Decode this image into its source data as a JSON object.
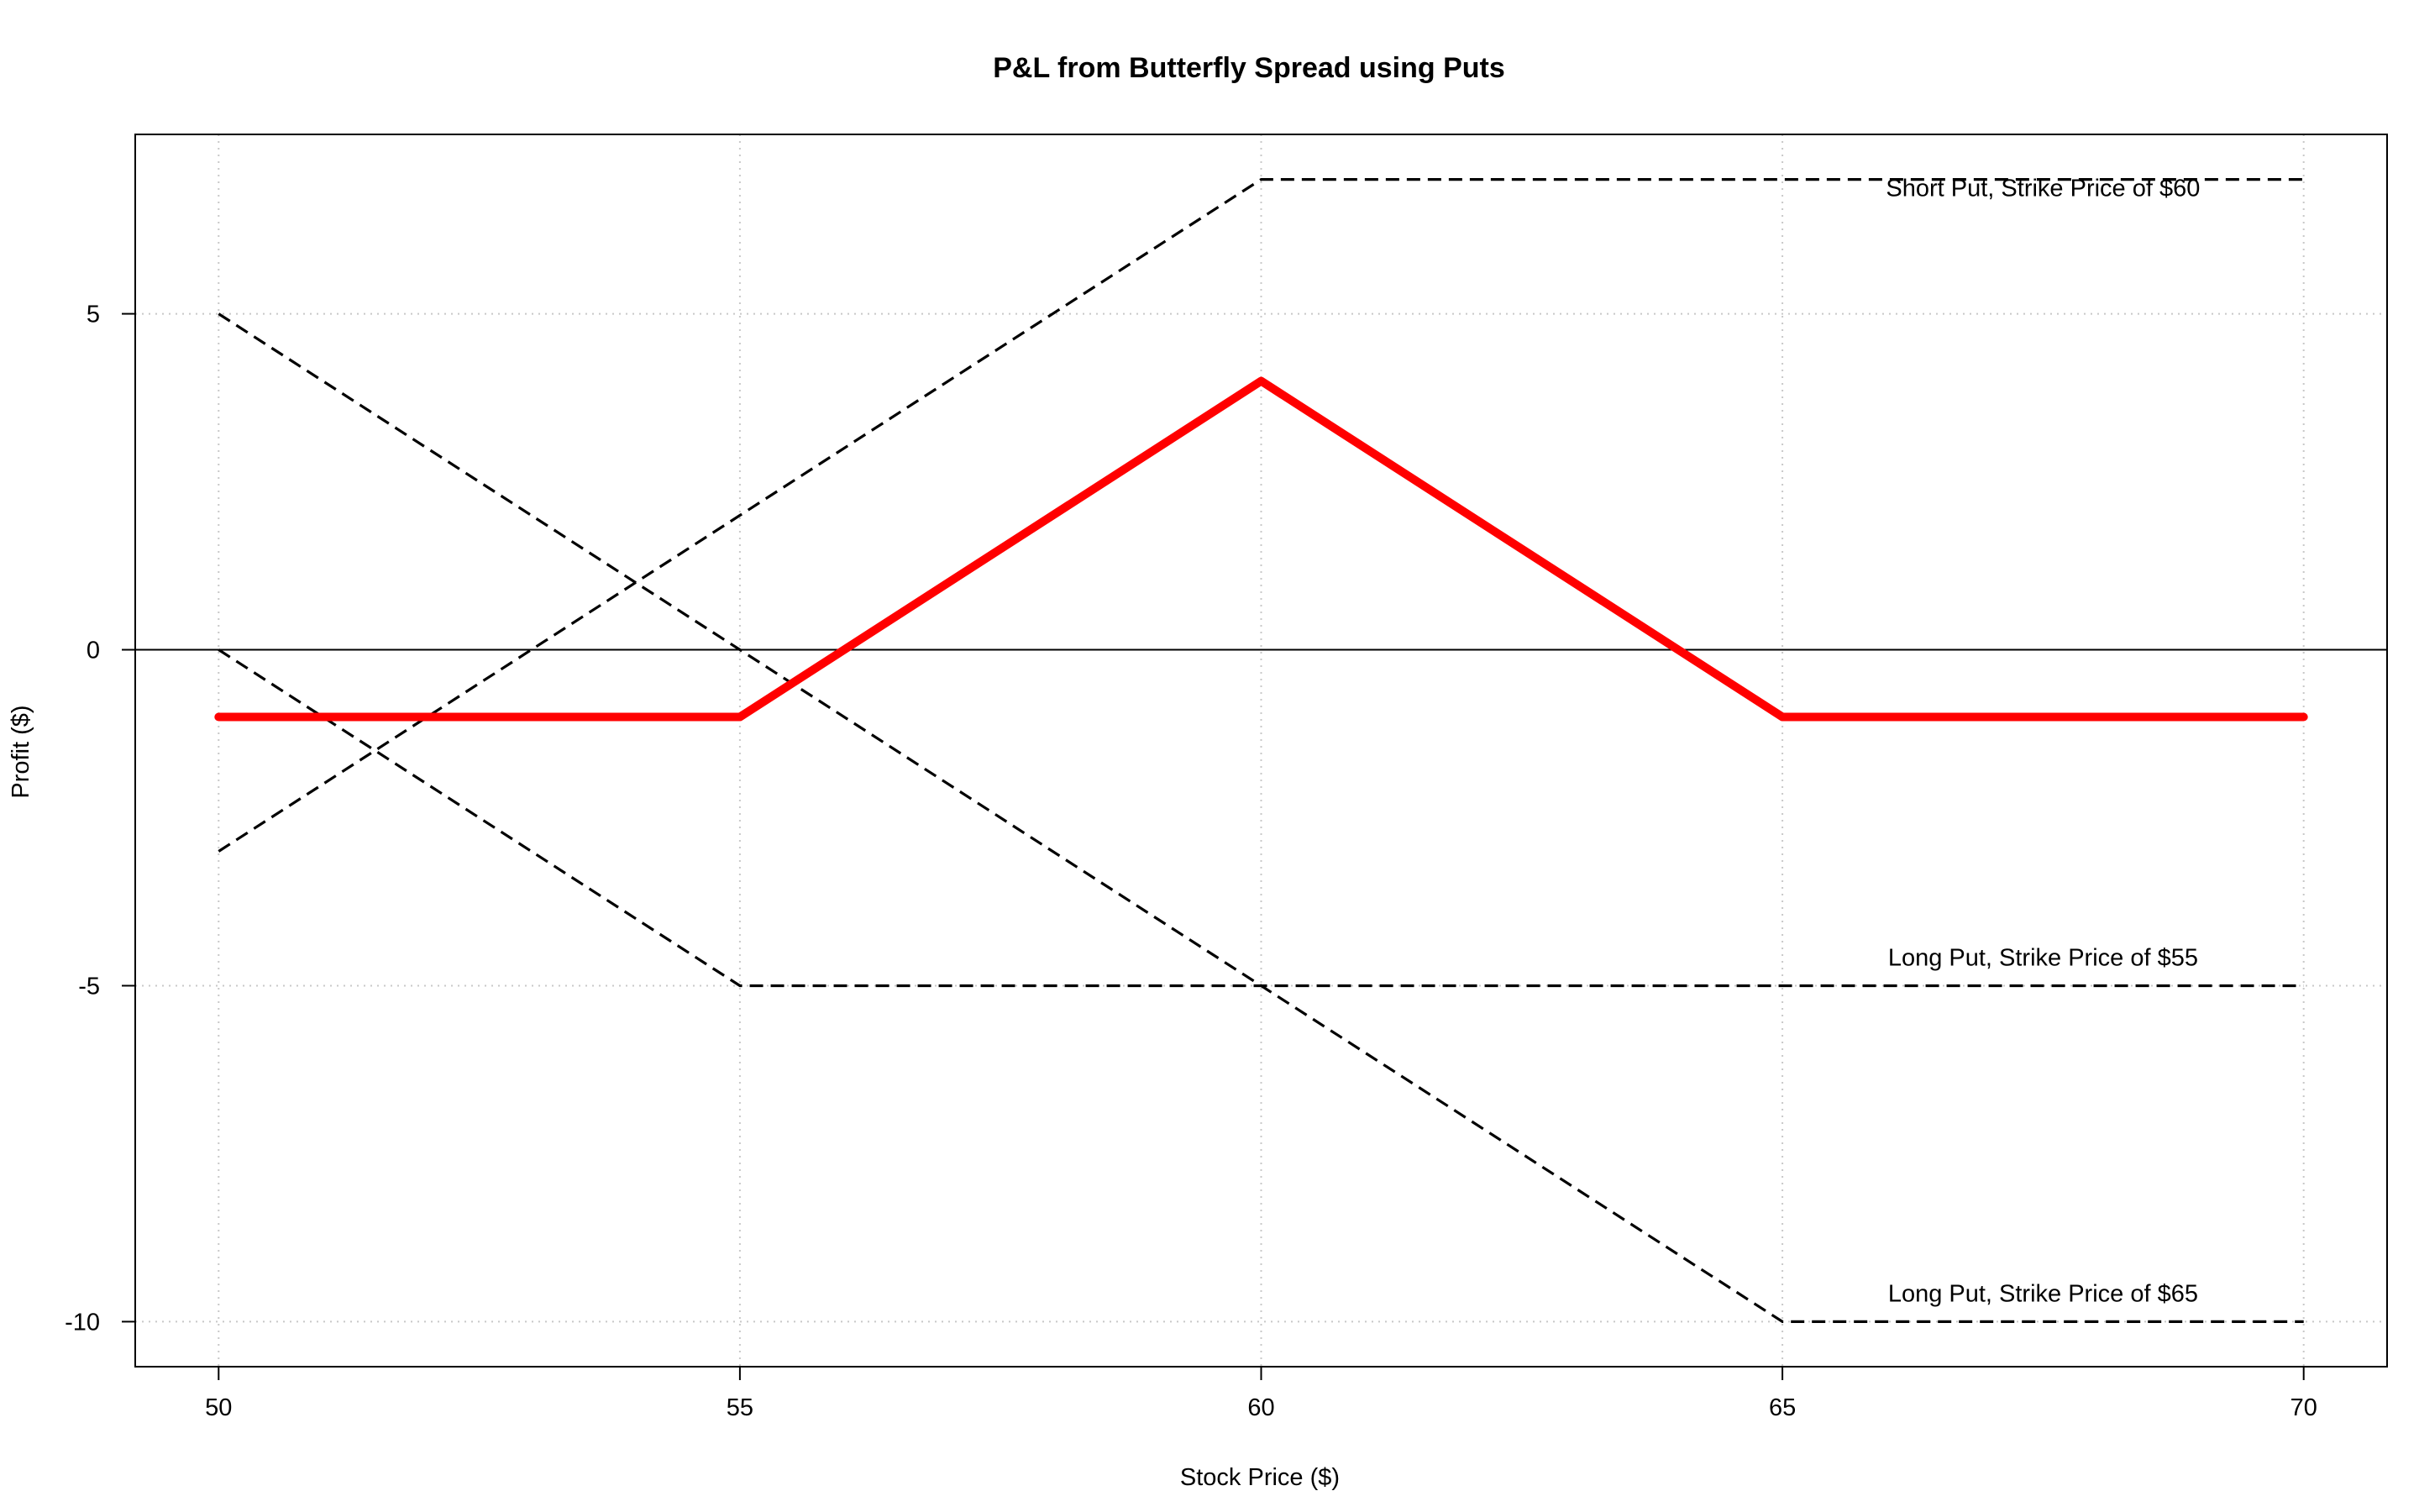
{
  "chart_data": {
    "type": "line",
    "title": "P&L from Butterfly Spread using Puts",
    "xlabel": "Stock Price ($)",
    "ylabel": "Profit ($)",
    "xlim": [
      49.2,
      70.8
    ],
    "ylim": [
      -10.67,
      7.67
    ],
    "xticks": [
      50,
      55,
      60,
      65,
      70
    ],
    "yticks": [
      -10,
      -5,
      0,
      5
    ],
    "grid": true,
    "series": [
      {
        "style": "dashed",
        "color": "#000000",
        "x": [
          50,
          55,
          60,
          65,
          70
        ],
        "y": [
          -3,
          2,
          7,
          7,
          7
        ]
      },
      {
        "style": "dashed",
        "color": "#000000",
        "x": [
          50,
          55,
          60,
          65,
          70
        ],
        "y": [
          0,
          -5,
          -5,
          -5,
          -5
        ]
      },
      {
        "style": "dashed",
        "color": "#000000",
        "x": [
          50,
          55,
          60,
          65,
          70
        ],
        "y": [
          5,
          0,
          -5,
          -10,
          -10
        ]
      },
      {
        "style": "solid",
        "color": "#ff0000",
        "x": [
          50,
          55,
          60,
          65,
          70
        ],
        "y": [
          -1,
          -1,
          4,
          -1,
          -1
        ]
      }
    ],
    "reference_lines": [
      {
        "axis": "y",
        "value": 0,
        "color": "#000000"
      }
    ],
    "annotations": [
      {
        "text": "Short Put, Strike Price of $60",
        "x": 67.5,
        "y": 6.75
      },
      {
        "text": "Long Put, Strike Price of $55",
        "x": 67.5,
        "y": -4.7
      },
      {
        "text": "Long Put, Strike Price of $65",
        "x": 67.5,
        "y": -9.7
      }
    ]
  }
}
